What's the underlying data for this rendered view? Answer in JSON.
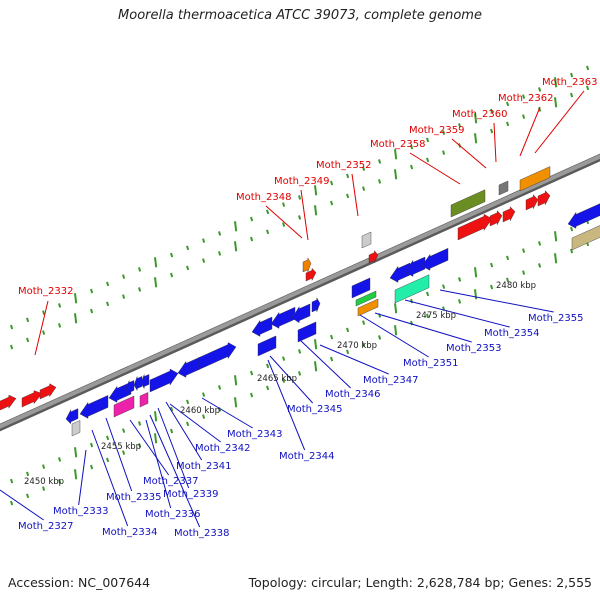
{
  "title": "Moorella thermoacetica ATCC 39073, complete genome",
  "footer": {
    "accession": "Accession: NC_007644",
    "topology": "Topology: circular; Length: 2,628,784 bp; Genes: 2,555"
  },
  "scale_labels": [
    "2450 kbp",
    "2455 kbp",
    "2460 kbp",
    "2465 kbp",
    "2470 kbp",
    "2475 kbp",
    "2480 kbp"
  ],
  "colors": {
    "forward_label": "#e00000",
    "reverse_label": "#1010c0",
    "backbone": "#9a9a9a",
    "tick": "#3a9a2a"
  },
  "forward_genes": [
    "Moth_2332",
    "Moth_2348",
    "Moth_2349",
    "Moth_2352",
    "Moth_2358",
    "Moth_2359",
    "Moth_2360",
    "Moth_2362",
    "Moth_2363"
  ],
  "reverse_genes": [
    "Moth_2327",
    "Moth_2333",
    "Moth_2334",
    "Moth_2335",
    "Moth_2336",
    "Moth_2337",
    "Moth_2338",
    "Moth_2339",
    "Moth_2341",
    "Moth_2342",
    "Moth_2343",
    "Moth_2344",
    "Moth_2345",
    "Moth_2346",
    "Moth_2347",
    "Moth_2351",
    "Moth_2353",
    "Moth_2354",
    "Moth_2355"
  ]
}
